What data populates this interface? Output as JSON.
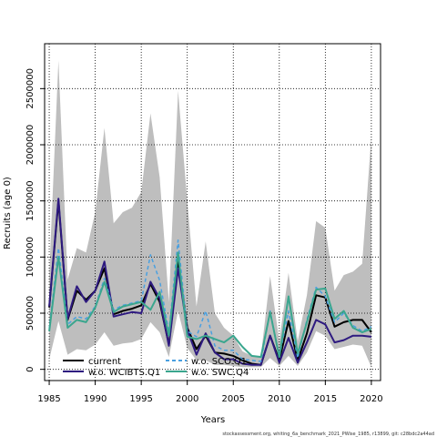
{
  "chart_data": {
    "type": "line",
    "xlabel": "Years",
    "ylabel": "Recruits (age 0)",
    "xlim": [
      1984.5,
      2021
    ],
    "ylim": [
      -100000,
      2900000
    ],
    "x_ticks": [
      1985,
      1990,
      1995,
      2000,
      2005,
      2010,
      2015,
      2020
    ],
    "y_ticks": [
      0,
      500000,
      1000000,
      1500000,
      2000000,
      2500000
    ],
    "y_tick_labels": [
      "0",
      "500000",
      "1000000",
      "1500000",
      "2000000",
      "2500000"
    ],
    "grid": true,
    "legend_position": "bottom-left",
    "x": [
      1985,
      1986,
      1987,
      1988,
      1989,
      1990,
      1991,
      1992,
      1993,
      1994,
      1995,
      1996,
      1997,
      1998,
      1999,
      2000,
      2001,
      2002,
      2003,
      2004,
      2005,
      2006,
      2007,
      2008,
      2009,
      2010,
      2011,
      2012,
      2013,
      2014,
      2015,
      2016,
      2017,
      2018,
      2019,
      2020
    ],
    "band": {
      "color": "#bebebe",
      "upper": [
        850000,
        2750000,
        800000,
        1080000,
        1040000,
        1400000,
        2150000,
        1300000,
        1400000,
        1440000,
        1580000,
        2280000,
        1710000,
        600000,
        2480000,
        1500000,
        560000,
        1140000,
        500000,
        370000,
        300000,
        160000,
        120000,
        120000,
        830000,
        250000,
        860000,
        250000,
        660000,
        1320000,
        1260000,
        700000,
        840000,
        870000,
        940000,
        2080000
      ],
      "lower": [
        90000,
        430000,
        130000,
        180000,
        170000,
        220000,
        330000,
        210000,
        230000,
        240000,
        270000,
        420000,
        330000,
        110000,
        520000,
        190000,
        80000,
        80000,
        40000,
        40000,
        30000,
        20000,
        20000,
        20000,
        100000,
        30000,
        120000,
        30000,
        150000,
        340000,
        300000,
        180000,
        200000,
        220000,
        210000,
        20000
      ]
    },
    "series": [
      {
        "name": "current",
        "color": "#000000",
        "dash": "",
        "width": 2,
        "values": [
          550000,
          1500000,
          440000,
          700000,
          620000,
          700000,
          900000,
          490000,
          520000,
          540000,
          570000,
          760000,
          600000,
          220000,
          960000,
          370000,
          180000,
          300000,
          150000,
          140000,
          120000,
          80000,
          50000,
          40000,
          300000,
          80000,
          430000,
          80000,
          320000,
          660000,
          640000,
          380000,
          420000,
          440000,
          440000,
          330000
        ]
      },
      {
        "name": "w.o. WCIBTS.Q1",
        "color": "#2e1a80",
        "dash": "",
        "width": 2,
        "values": [
          560000,
          1520000,
          450000,
          740000,
          600000,
          700000,
          960000,
          470000,
          490000,
          510000,
          500000,
          780000,
          630000,
          210000,
          900000,
          350000,
          130000,
          320000,
          150000,
          90000,
          90000,
          50000,
          40000,
          40000,
          300000,
          60000,
          280000,
          60000,
          240000,
          440000,
          400000,
          240000,
          260000,
          300000,
          300000,
          290000
        ]
      },
      {
        "name": "w.o. SCO.Q1",
        "color": "#4aa0e0",
        "dash": "4,3",
        "width": 1.5,
        "values": [
          360000,
          1080000,
          400000,
          470000,
          450000,
          560000,
          810000,
          530000,
          570000,
          590000,
          610000,
          1020000,
          790000,
          330000,
          1150000,
          340000,
          290000,
          520000,
          210000,
          170000,
          170000,
          90000,
          80000,
          70000,
          520000,
          110000,
          520000,
          100000,
          440000,
          730000,
          650000,
          420000,
          500000,
          390000,
          340000,
          380000
        ]
      },
      {
        "name": "w.o. SWC.Q4",
        "color": "#3aa68e",
        "dash": "",
        "width": 2,
        "values": [
          340000,
          1000000,
          370000,
          440000,
          420000,
          550000,
          780000,
          510000,
          560000,
          580000,
          600000,
          530000,
          690000,
          300000,
          1040000,
          290000,
          270000,
          300000,
          270000,
          240000,
          300000,
          200000,
          120000,
          110000,
          510000,
          110000,
          650000,
          140000,
          420000,
          710000,
          720000,
          450000,
          520000,
          370000,
          330000,
          360000
        ]
      }
    ]
  },
  "legend": {
    "items": [
      {
        "label": "current",
        "color": "#000000",
        "dash": ""
      },
      {
        "label": "w.o. WCIBTS.Q1",
        "color": "#2e1a80",
        "dash": ""
      },
      {
        "label": "w.o. SCO.Q1",
        "color": "#4aa0e0",
        "dash": "4,3"
      },
      {
        "label": "w.o. SWC.Q4",
        "color": "#3aa68e",
        "dash": ""
      }
    ]
  },
  "footer": "stockassessment.org, whiting_6a_benchmark_2021_PWise_1985, r13899, git: c28bdc2a44ad"
}
